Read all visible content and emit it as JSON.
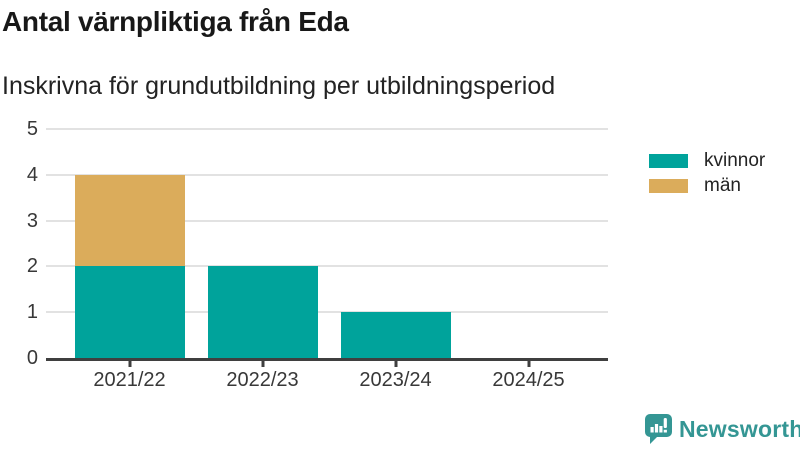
{
  "chart_data": {
    "type": "bar",
    "stacked": true,
    "title": "Antal värnpliktiga från Eda",
    "subtitle": "Inskrivna för grundutbildning per utbildningsperiod",
    "categories": [
      "2021/22",
      "2022/23",
      "2023/24",
      "2024/25"
    ],
    "series": [
      {
        "name": "kvinnor",
        "color": "#00a39b",
        "values": [
          2,
          2,
          1,
          0
        ]
      },
      {
        "name": "män",
        "color": "#dbac5b",
        "values": [
          2,
          0,
          0,
          0
        ]
      }
    ],
    "ylim": [
      0,
      5
    ],
    "yticks": [
      0,
      1,
      2,
      3,
      4,
      5
    ],
    "xlabel": "",
    "ylabel": "",
    "grid": true,
    "legend_position": "right"
  },
  "footer": {
    "brand": "Newsworthy"
  },
  "colors": {
    "axis": "#3f3f3f",
    "grid": "#e2e2e2",
    "tick-label": "#383838",
    "brand-teal": "#349694"
  }
}
